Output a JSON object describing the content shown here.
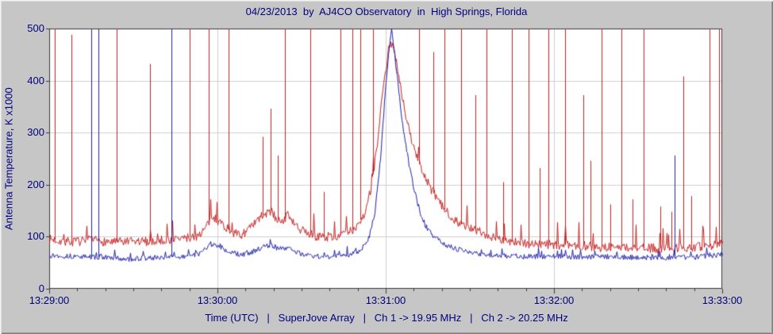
{
  "chart_data": {
    "type": "line",
    "title": "04/23/2013  by  AJ4CO Observatory  in  High Springs, Florida",
    "ylabel": "Antenna Temperature, K x1000",
    "xlabel": "Time (UTC)   |   SuperJove Array   |   Ch 1 -> 19.95 MHz   |   Ch 2 -> 20.25 MHz",
    "x_tick_labels": [
      "13:29:00",
      "13:30:00",
      "13:31:00",
      "13:32:00",
      "13:33:00"
    ],
    "x_tick_seconds": [
      0,
      60,
      120,
      180,
      240
    ],
    "x_minor_tick_interval": 10,
    "x_range_seconds": [
      0,
      240
    ],
    "y_ticks": [
      0,
      100,
      200,
      300,
      400,
      500
    ],
    "ylim": [
      0,
      500
    ],
    "grid": true,
    "legend_position": "none",
    "colors": {
      "background": "#c6c6c6",
      "plot_bg": "#ffffff",
      "grid": "#cfcfcf",
      "frame": "#3a3a3a",
      "text": "#000080"
    },
    "series": [
      {
        "name": "Ch 1 -> 19.95 MHz",
        "color": "#c42222",
        "seed": 7,
        "noise": 9,
        "flare": 42,
        "baseline": [
          [
            0,
            95
          ],
          [
            8,
            90
          ],
          [
            15,
            93
          ],
          [
            22,
            90
          ],
          [
            30,
            90
          ],
          [
            38,
            92
          ],
          [
            45,
            95
          ],
          [
            52,
            100
          ],
          [
            55,
            112
          ],
          [
            58,
            138
          ],
          [
            61,
            128
          ],
          [
            64,
            112
          ],
          [
            68,
            102
          ],
          [
            72,
            118
          ],
          [
            76,
            142
          ],
          [
            79,
            148
          ],
          [
            82,
            128
          ],
          [
            85,
            140
          ],
          [
            88,
            118
          ],
          [
            92,
            105
          ],
          [
            96,
            100
          ],
          [
            100,
            100
          ],
          [
            104,
            103
          ],
          [
            108,
            112
          ],
          [
            112,
            140
          ],
          [
            115,
            200
          ],
          [
            117,
            280
          ],
          [
            119,
            390
          ],
          [
            121,
            462
          ],
          [
            122,
            470
          ],
          [
            123.5,
            445
          ],
          [
            125,
            395
          ],
          [
            127,
            330
          ],
          [
            130,
            268
          ],
          [
            133,
            225
          ],
          [
            136,
            192
          ],
          [
            140,
            158
          ],
          [
            144,
            135
          ],
          [
            148,
            120
          ],
          [
            152,
            112
          ],
          [
            156,
            104
          ],
          [
            160,
            96
          ],
          [
            166,
            90
          ],
          [
            172,
            86
          ],
          [
            180,
            84
          ],
          [
            188,
            84
          ],
          [
            196,
            80
          ],
          [
            204,
            80
          ],
          [
            212,
            78
          ],
          [
            220,
            78
          ],
          [
            228,
            80
          ],
          [
            234,
            80
          ],
          [
            240,
            88
          ]
        ],
        "spikes": [
          [
            2,
            500
          ],
          [
            8,
            488
          ],
          [
            24,
            500
          ],
          [
            36,
            432
          ],
          [
            50,
            500
          ],
          [
            57,
            500
          ],
          [
            64,
            500
          ],
          [
            76,
            292
          ],
          [
            79,
            346
          ],
          [
            81.5,
            256
          ],
          [
            84,
            500
          ],
          [
            93,
            500
          ],
          [
            98,
            186
          ],
          [
            104,
            500
          ],
          [
            108,
            500
          ],
          [
            111,
            500
          ],
          [
            115.5,
            500
          ],
          [
            132,
            500
          ],
          [
            137,
            455
          ],
          [
            141,
            500
          ],
          [
            147,
            500
          ],
          [
            152,
            372
          ],
          [
            156,
            500
          ],
          [
            162,
            205
          ],
          [
            165,
            500
          ],
          [
            171,
            500
          ],
          [
            175,
            232
          ],
          [
            178,
            500
          ],
          [
            184,
            500
          ],
          [
            190.5,
            372
          ],
          [
            193,
            246
          ],
          [
            197,
            500
          ],
          [
            200,
            162
          ],
          [
            204,
            500
          ],
          [
            208,
            172
          ],
          [
            212,
            500
          ],
          [
            218,
            158
          ],
          [
            222,
            148
          ],
          [
            226,
            408
          ],
          [
            229,
            178
          ],
          [
            235.5,
            500
          ],
          [
            239,
            500
          ]
        ]
      },
      {
        "name": "Ch 2 -> 20.25 MHz",
        "color": "#1f1fa8",
        "seed": 13,
        "noise": 5,
        "flare": 16,
        "baseline": [
          [
            0,
            64
          ],
          [
            10,
            62
          ],
          [
            20,
            60
          ],
          [
            28,
            57
          ],
          [
            35,
            59
          ],
          [
            42,
            61
          ],
          [
            48,
            62
          ],
          [
            53,
            66
          ],
          [
            56,
            78
          ],
          [
            58,
            86
          ],
          [
            61,
            80
          ],
          [
            64,
            72
          ],
          [
            68,
            65
          ],
          [
            72,
            70
          ],
          [
            76,
            80
          ],
          [
            79,
            84
          ],
          [
            82,
            76
          ],
          [
            85,
            80
          ],
          [
            88,
            70
          ],
          [
            92,
            64
          ],
          [
            96,
            62
          ],
          [
            100,
            62
          ],
          [
            104,
            63
          ],
          [
            108,
            67
          ],
          [
            111,
            75
          ],
          [
            114,
            100
          ],
          [
            116,
            145
          ],
          [
            118,
            250
          ],
          [
            120,
            400
          ],
          [
            121.5,
            480
          ],
          [
            122,
            500
          ],
          [
            123,
            455
          ],
          [
            124.5,
            380
          ],
          [
            126,
            310
          ],
          [
            128,
            245
          ],
          [
            130,
            190
          ],
          [
            132,
            150
          ],
          [
            134,
            122
          ],
          [
            137,
            100
          ],
          [
            140,
            88
          ],
          [
            144,
            78
          ],
          [
            148,
            72
          ],
          [
            152,
            68
          ],
          [
            156,
            66
          ],
          [
            160,
            64
          ],
          [
            170,
            62
          ],
          [
            180,
            62
          ],
          [
            190,
            61
          ],
          [
            200,
            62
          ],
          [
            210,
            60
          ],
          [
            220,
            60
          ],
          [
            230,
            61
          ],
          [
            240,
            66
          ]
        ],
        "spikes": [
          [
            15,
            500
          ],
          [
            17.5,
            500
          ],
          [
            43.5,
            500
          ],
          [
            223,
            256
          ]
        ]
      }
    ]
  }
}
